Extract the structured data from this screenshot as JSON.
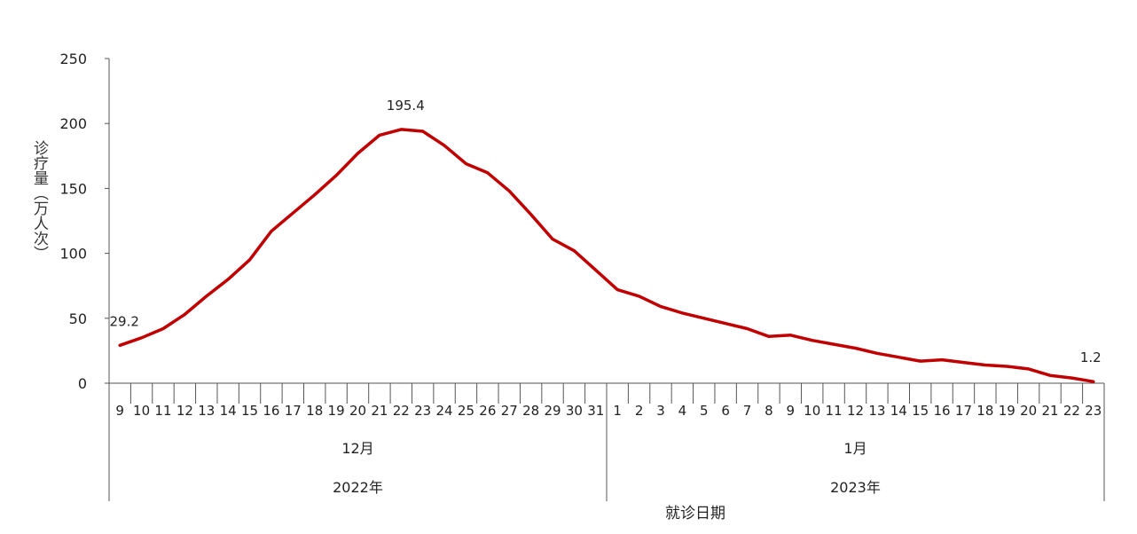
{
  "chart_data": {
    "type": "line",
    "title": "",
    "xlabel": "就诊日期",
    "ylabel": "诊疗量（万人次）",
    "ylim": [
      0,
      250
    ],
    "yticks": [
      0,
      50,
      100,
      150,
      200,
      250
    ],
    "grid": false,
    "line_color": "#c00000",
    "groups": [
      {
        "month": "12月",
        "year": "2022年",
        "days": [
          "9",
          "10",
          "11",
          "12",
          "13",
          "14",
          "15",
          "16",
          "17",
          "18",
          "19",
          "20",
          "21",
          "22",
          "23",
          "24",
          "25",
          "26",
          "27",
          "28",
          "29",
          "30",
          "31"
        ]
      },
      {
        "month": "1月",
        "year": "2023年",
        "days": [
          "1",
          "2",
          "3",
          "4",
          "5",
          "6",
          "7",
          "8",
          "9",
          "10",
          "11",
          "12",
          "13",
          "14",
          "15",
          "16",
          "17",
          "18",
          "19",
          "20",
          "21",
          "22",
          "23"
        ]
      }
    ],
    "series": [
      {
        "values": [
          29.2,
          35,
          42,
          53,
          67,
          80,
          95,
          117,
          131,
          145,
          160,
          177,
          191,
          195.4,
          194,
          183,
          169,
          162,
          148,
          130,
          111,
          102,
          87,
          72,
          67,
          59,
          54,
          50,
          46,
          42,
          36,
          37,
          33,
          30,
          27,
          23,
          20,
          17,
          18,
          16,
          14,
          13,
          11,
          6,
          4,
          1.2
        ]
      }
    ],
    "data_labels": [
      {
        "index": 0,
        "text": "29.2"
      },
      {
        "index": 13,
        "text": "195.4"
      },
      {
        "index": 45,
        "text": "1.2"
      }
    ]
  }
}
